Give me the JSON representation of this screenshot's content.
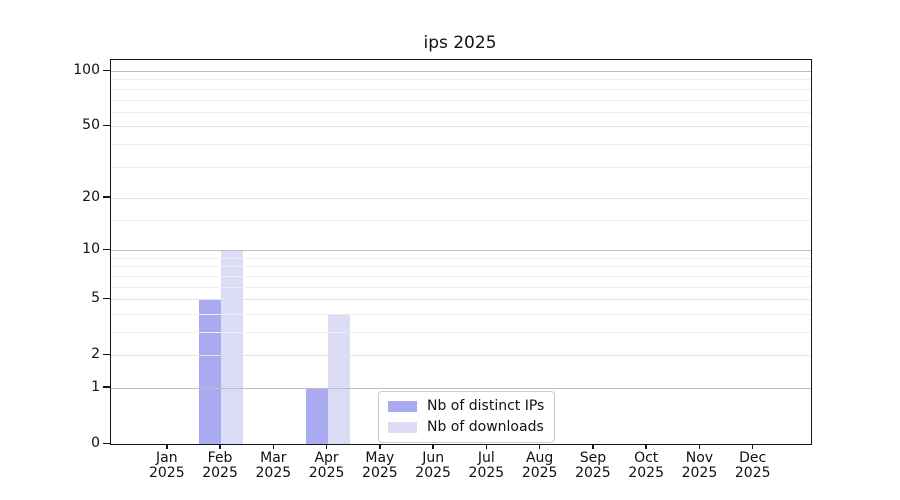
{
  "chart_data": {
    "type": "bar",
    "title": "ips 2025",
    "categories": [
      "Jan",
      "Feb",
      "Mar",
      "Apr",
      "May",
      "Jun",
      "Jul",
      "Aug",
      "Sep",
      "Oct",
      "Nov",
      "Dec"
    ],
    "x_year_label": "2025",
    "series": [
      {
        "name": "Nb of distinct IPs",
        "color": "#aaaaf0",
        "values": [
          0,
          5,
          0,
          1,
          0,
          0,
          0,
          0,
          0,
          0,
          0,
          0
        ]
      },
      {
        "name": "Nb of downloads",
        "color": "#dcdcf6",
        "values": [
          0,
          10,
          0,
          4,
          0,
          0,
          0,
          0,
          0,
          0,
          0,
          0
        ]
      }
    ],
    "y_axis": {
      "scale": "log1p",
      "major_ticks": [
        0,
        1,
        2,
        5,
        10,
        20,
        50,
        100
      ],
      "decade_ticks": [
        1,
        10,
        100
      ],
      "minor_ticks": [
        3,
        4,
        6,
        7,
        8,
        9,
        15,
        30,
        40,
        60,
        70,
        80,
        90
      ],
      "top_value": 115
    },
    "grid": {
      "orientation": "horizontal",
      "decade_color": "#bdbdbd",
      "major_color": "#e3e3e3",
      "minor_color": "#ededed",
      "drawn_above_bars": true
    },
    "legend": {
      "position": "lower-center-inside"
    },
    "axis_color": "#161616",
    "background": "#ffffff"
  }
}
